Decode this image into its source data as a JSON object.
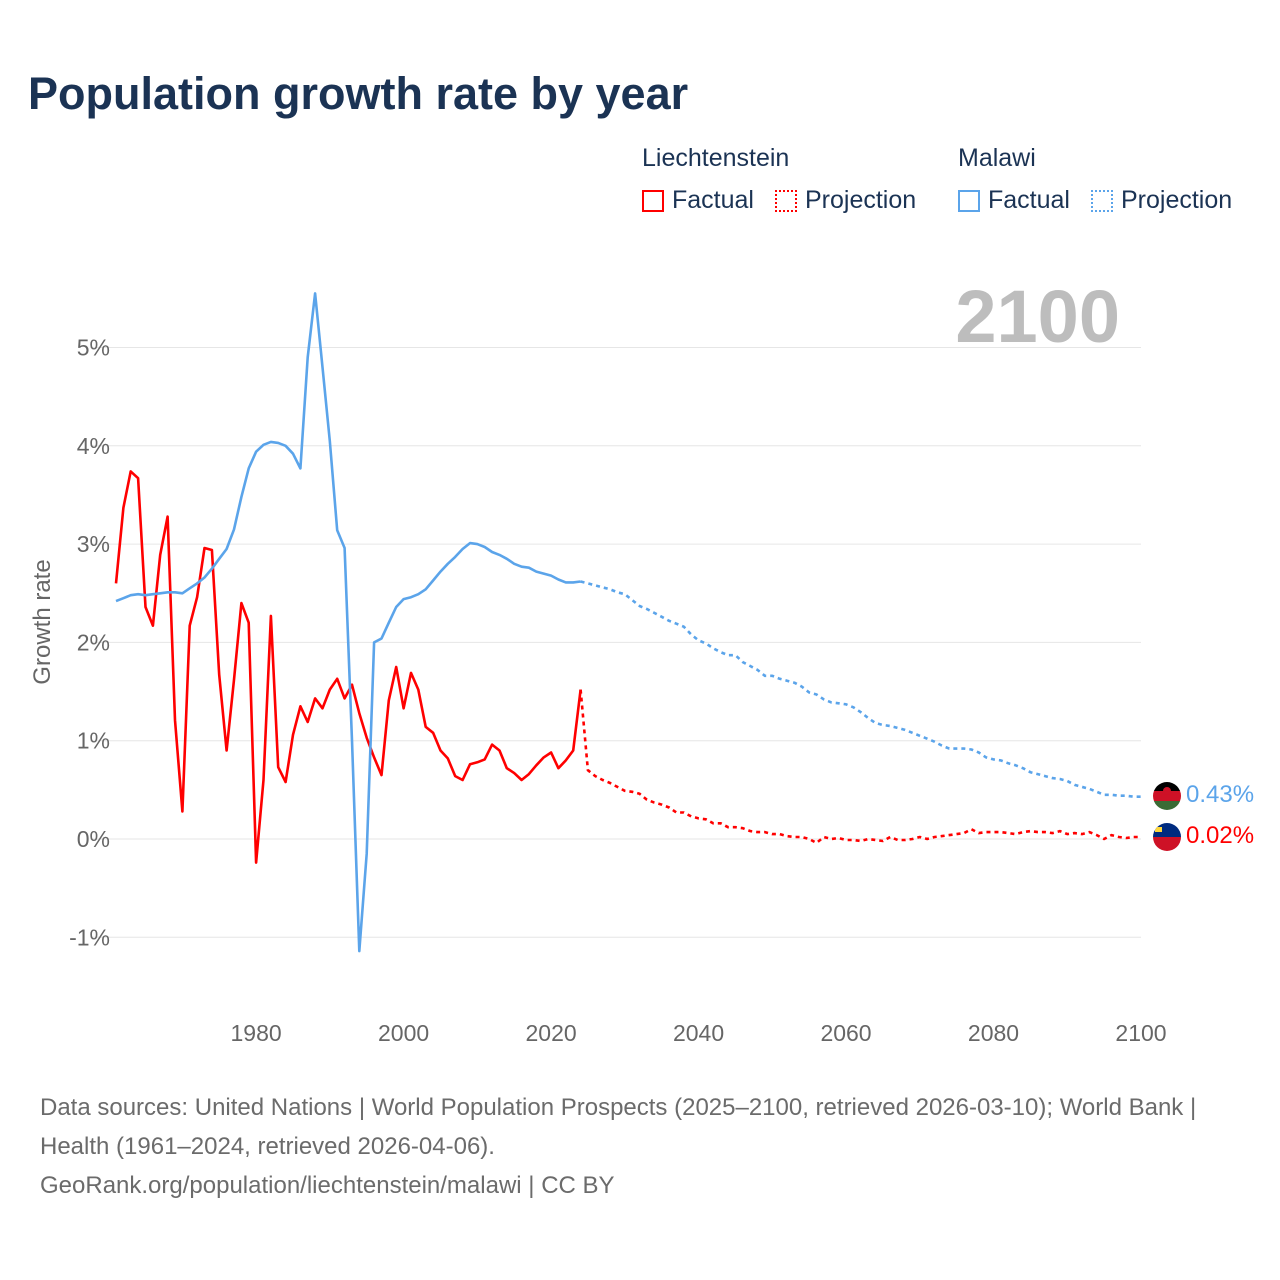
{
  "title": "Population growth rate by year",
  "legend": {
    "groups": [
      {
        "country": "Liechtenstein",
        "color": "#ff0000",
        "factual_label": "Factual",
        "projection_label": "Projection"
      },
      {
        "country": "Malawi",
        "color": "#5ba4ea",
        "factual_label": "Factual",
        "projection_label": "Projection"
      }
    ]
  },
  "year_label": "2100",
  "end_labels": {
    "malawi": "0.43%",
    "liechtenstein": "0.02%"
  },
  "footer": {
    "sources": "Data sources: United Nations | World Population Prospects (2025–2100, retrieved 2026-03-10); World Bank | Health (1961–2024, retrieved 2026-04-06).",
    "credit": "GeoRank.org/population/liechtenstein/malawi | CC BY"
  },
  "chart_data": {
    "type": "line",
    "title": "Population growth rate by year",
    "xlabel": "",
    "ylabel": "Growth rate",
    "xlim": [
      1961,
      2100
    ],
    "ylim": [
      -1.5,
      5.6
    ],
    "grid": true,
    "legend_position": "top-right",
    "x_ticks": [
      "1980",
      "2000",
      "2020",
      "2040",
      "2060",
      "2080",
      "2100"
    ],
    "x_tick_values": [
      1980,
      2000,
      2020,
      2040,
      2060,
      2080,
      2100
    ],
    "y_ticks": [
      "-1%",
      "0%",
      "1%",
      "2%",
      "3%",
      "4%",
      "5%"
    ],
    "y_tick_values": [
      -1,
      0,
      1,
      2,
      3,
      4,
      5
    ],
    "series": [
      {
        "name": "Liechtenstein Factual",
        "color": "#ff0000",
        "style": "solid",
        "x_start": 1961,
        "values": [
          2.6,
          3.37,
          3.74,
          3.67,
          2.36,
          2.17,
          2.89,
          3.28,
          1.21,
          0.28,
          2.17,
          2.46,
          2.96,
          2.94,
          1.67,
          0.9,
          1.62,
          2.4,
          2.2,
          -0.24,
          0.6,
          2.27,
          0.73,
          0.58,
          1.06,
          1.35,
          1.19,
          1.43,
          1.33,
          1.52,
          1.63,
          1.43,
          1.57,
          1.28,
          1.03,
          0.83,
          0.65,
          1.41,
          1.75,
          1.33,
          1.69,
          1.52,
          1.14,
          1.08,
          0.9,
          0.82,
          0.64,
          0.6,
          0.76,
          0.78,
          0.81,
          0.96,
          0.9,
          0.72,
          0.67,
          0.6,
          0.66,
          0.75,
          0.83,
          0.88,
          0.72,
          0.8,
          0.9,
          1.52
        ]
      },
      {
        "name": "Liechtenstein Projection",
        "color": "#ff0000",
        "style": "dotted",
        "x_start": 2024,
        "values": [
          1.52,
          0.7,
          0.64,
          0.6,
          0.57,
          0.53,
          0.49,
          0.48,
          0.46,
          0.4,
          0.37,
          0.35,
          0.32,
          0.27,
          0.27,
          0.23,
          0.21,
          0.2,
          0.16,
          0.16,
          0.12,
          0.12,
          0.11,
          0.08,
          0.07,
          0.07,
          0.05,
          0.05,
          0.03,
          0.02,
          0.02,
          0.0,
          -0.04,
          0.02,
          0.0,
          0.01,
          -0.01,
          -0.01,
          -0.02,
          0.0,
          -0.01,
          -0.02,
          0.02,
          -0.01,
          -0.01,
          0.0,
          0.02,
          0.0,
          0.02,
          0.03,
          0.04,
          0.05,
          0.06,
          0.1,
          0.06,
          0.07,
          0.07,
          0.07,
          0.06,
          0.05,
          0.07,
          0.08,
          0.07,
          0.07,
          0.06,
          0.08,
          0.05,
          0.06,
          0.05,
          0.07,
          0.04,
          0.0,
          0.04,
          0.02,
          0.01,
          0.02,
          0.02
        ]
      },
      {
        "name": "Malawi Factual",
        "color": "#5ba4ea",
        "style": "solid",
        "x_start": 1961,
        "values": [
          2.42,
          2.45,
          2.48,
          2.49,
          2.48,
          2.49,
          2.5,
          2.51,
          2.51,
          2.5,
          2.55,
          2.6,
          2.66,
          2.75,
          2.85,
          2.95,
          3.15,
          3.48,
          3.77,
          3.94,
          4.01,
          4.04,
          4.03,
          4.0,
          3.92,
          3.77,
          4.9,
          5.55,
          4.8,
          4.05,
          3.14,
          2.96,
          1.0,
          -1.14,
          -0.15,
          2.0,
          2.04,
          2.2,
          2.36,
          2.44,
          2.46,
          2.49,
          2.54,
          2.63,
          2.72,
          2.8,
          2.87,
          2.95,
          3.01,
          3.0,
          2.97,
          2.92,
          2.89,
          2.85,
          2.8,
          2.77,
          2.76,
          2.72,
          2.7,
          2.68,
          2.64,
          2.61,
          2.61,
          2.62
        ]
      },
      {
        "name": "Malawi Projection",
        "color": "#5ba4ea",
        "style": "dotted",
        "x_start": 2024,
        "values": [
          2.62,
          2.6,
          2.58,
          2.56,
          2.54,
          2.51,
          2.49,
          2.43,
          2.37,
          2.34,
          2.3,
          2.26,
          2.22,
          2.19,
          2.16,
          2.08,
          2.02,
          1.99,
          1.94,
          1.9,
          1.87,
          1.87,
          1.8,
          1.76,
          1.72,
          1.66,
          1.66,
          1.63,
          1.61,
          1.59,
          1.55,
          1.49,
          1.47,
          1.42,
          1.39,
          1.38,
          1.37,
          1.34,
          1.29,
          1.23,
          1.18,
          1.16,
          1.15,
          1.13,
          1.11,
          1.08,
          1.05,
          1.02,
          0.99,
          0.95,
          0.92,
          0.92,
          0.92,
          0.91,
          0.88,
          0.83,
          0.81,
          0.8,
          0.77,
          0.75,
          0.72,
          0.68,
          0.66,
          0.64,
          0.62,
          0.61,
          0.59,
          0.55,
          0.53,
          0.51,
          0.48,
          0.45,
          0.45,
          0.44,
          0.44,
          0.43,
          0.43
        ]
      }
    ]
  }
}
